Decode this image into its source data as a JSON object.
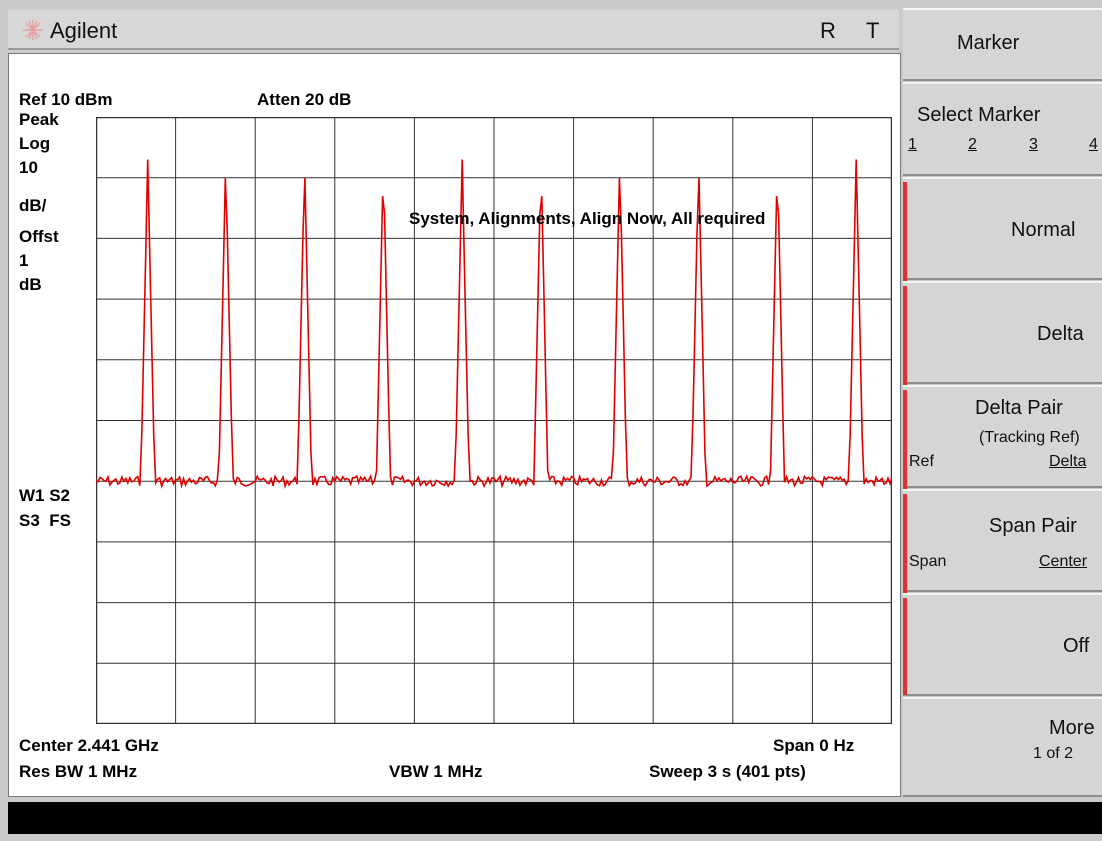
{
  "title_bar": {
    "brand": "Agilent",
    "indicator_r": "R",
    "indicator_t": "T"
  },
  "display": {
    "ref_level": "Ref 10 dBm",
    "attenuation": "Atten 20 dB",
    "detector": "Peak",
    "scale_type": "Log",
    "scale_value": "10",
    "scale_unit": "dB/",
    "offset_label": "Offst",
    "offset_value": "1",
    "offset_unit": "dB",
    "trace_status_1": "W1 S2",
    "trace_status_2": "S3  FS",
    "message": "System, Alignments, Align Now, All required",
    "center": "Center 2.441 GHz",
    "span": "Span 0 Hz",
    "res_bw": "Res BW 1 MHz",
    "vbw": "VBW 1 MHz",
    "sweep": "Sweep 3 s (401 pts)",
    "trace_color": "#e00000",
    "grid_color": "#333333"
  },
  "trace": {
    "baseline_fraction": 0.6,
    "peak_fraction": 0.07,
    "peak_positions_fraction": [
      0.065,
      0.163,
      0.262,
      0.361,
      0.46,
      0.559,
      0.658,
      0.757,
      0.856,
      0.955
    ]
  },
  "softkeys": {
    "menu_title": "Marker",
    "select_marker": {
      "label": "Select Marker",
      "options": [
        "1",
        "2",
        "3",
        "4"
      ]
    },
    "normal": "Normal",
    "delta": "Delta",
    "delta_pair": {
      "label": "Delta Pair",
      "sub": "(Tracking Ref)",
      "left": "Ref",
      "right": "Delta"
    },
    "span_pair": {
      "label": "Span Pair",
      "left": "Span",
      "right": "Center"
    },
    "off": "Off",
    "more": {
      "label": "More",
      "page": "1 of 2"
    }
  }
}
